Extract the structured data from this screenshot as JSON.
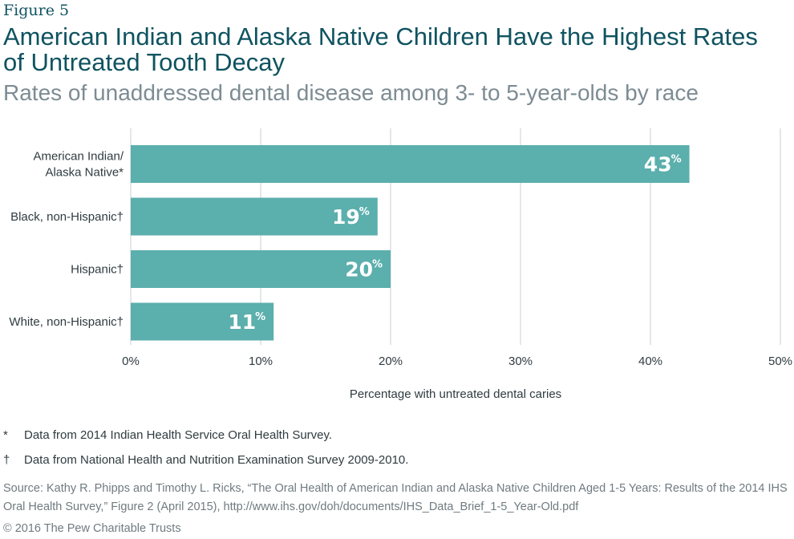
{
  "figure_label": "Figure 5",
  "title": "American Indian and Alaska Native Children Have the Highest Rates of Untreated Tooth Decay",
  "subtitle": "Rates of unaddressed dental disease among 3- to 5-year-olds by race",
  "chart_data": {
    "type": "bar",
    "orientation": "horizontal",
    "categories": [
      {
        "lines": [
          "American Indian/",
          "Alaska Native*"
        ]
      },
      {
        "lines": [
          "Black, non-Hispanic†"
        ]
      },
      {
        "lines": [
          "Hispanic†"
        ]
      },
      {
        "lines": [
          "White, non-Hispanic†"
        ]
      }
    ],
    "values": [
      43,
      19,
      20,
      11
    ],
    "data_labels": [
      "43",
      "19",
      "20",
      "11"
    ],
    "data_label_suffix": "%",
    "xlabel": "Percentage with untreated dental caries",
    "xlim": [
      0,
      50
    ],
    "xticks": [
      0,
      10,
      20,
      30,
      40,
      50
    ],
    "xtick_labels": [
      "0%",
      "10%",
      "20%",
      "30%",
      "40%",
      "50%"
    ],
    "grid": "vertical",
    "bar_color": "#5bafad",
    "grid_color": "#c9cfd2",
    "label_color": "#2f3b40"
  },
  "notes": [
    {
      "symbol": "*",
      "text": "Data from 2014 Indian Health Service Oral Health Survey."
    },
    {
      "symbol": "†",
      "text": "Data from National Health and Nutrition Examination Survey 2009-2010."
    }
  ],
  "source": "Source: Kathy R. Phipps and Timothy L. Ricks, “The Oral Health of American Indian and Alaska Native Children Aged 1-5 Years: Results of the 2014 IHS Oral Health Survey,” Figure 2 (April 2015), http://www.ihs.gov/doh/documents/IHS_Data_Brief_1-5_Year-Old.pdf",
  "copyright": "© 2016 The Pew Charitable Trusts"
}
